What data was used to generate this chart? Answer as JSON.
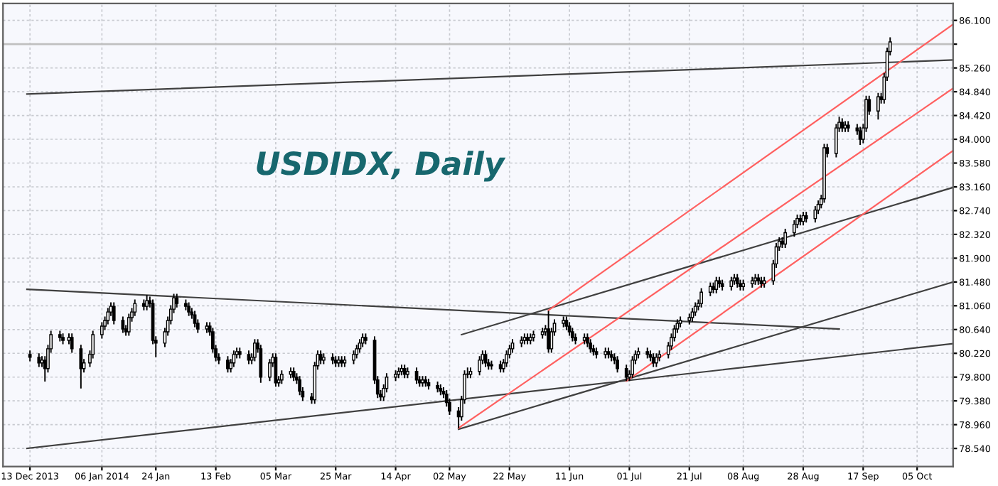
{
  "chart_data": {
    "type": "candlestick",
    "title": "USDIDX, Daily",
    "x": [
      "2013-12-13",
      "2013-12-16",
      "2013-12-17",
      "2013-12-18",
      "2013-12-19",
      "2013-12-20",
      "2013-12-23",
      "2013-12-24",
      "2013-12-26",
      "2013-12-27",
      "2013-12-30",
      "2013-12-31",
      "2014-01-02",
      "2014-01-03",
      "2014-01-06",
      "2014-01-07",
      "2014-01-08",
      "2014-01-09",
      "2014-01-10",
      "2014-01-13",
      "2014-01-14",
      "2014-01-15",
      "2014-01-16",
      "2014-01-17",
      "2014-01-20",
      "2014-01-21",
      "2014-01-22",
      "2014-01-23",
      "2014-01-24",
      "2014-01-27",
      "2014-01-28",
      "2014-01-29",
      "2014-01-30",
      "2014-01-31",
      "2014-02-03",
      "2014-02-04",
      "2014-02-05",
      "2014-02-06",
      "2014-02-07",
      "2014-02-10",
      "2014-02-11",
      "2014-02-12",
      "2014-02-13",
      "2014-02-14",
      "2014-02-17",
      "2014-02-18",
      "2014-02-19",
      "2014-02-20",
      "2014-02-21",
      "2014-02-24",
      "2014-02-25",
      "2014-02-26",
      "2014-02-27",
      "2014-02-28",
      "2014-03-03",
      "2014-03-04",
      "2014-03-05",
      "2014-03-06",
      "2014-03-07",
      "2014-03-10",
      "2014-03-11",
      "2014-03-12",
      "2014-03-13",
      "2014-03-14",
      "2014-03-17",
      "2014-03-18",
      "2014-03-19",
      "2014-03-20",
      "2014-03-21",
      "2014-03-24",
      "2014-03-25",
      "2014-03-26",
      "2014-03-27",
      "2014-03-28",
      "2014-03-31",
      "2014-04-01",
      "2014-04-02",
      "2014-04-03",
      "2014-04-04",
      "2014-04-07",
      "2014-04-08",
      "2014-04-09",
      "2014-04-10",
      "2014-04-11",
      "2014-04-14",
      "2014-04-15",
      "2014-04-16",
      "2014-04-17",
      "2014-04-18",
      "2014-04-21",
      "2014-04-22",
      "2014-04-23",
      "2014-04-24",
      "2014-04-25",
      "2014-04-28",
      "2014-04-29",
      "2014-04-30",
      "2014-05-01",
      "2014-05-02",
      "2014-05-05",
      "2014-05-06",
      "2014-05-07",
      "2014-05-08",
      "2014-05-09",
      "2014-05-12",
      "2014-05-13",
      "2014-05-14",
      "2014-05-15",
      "2014-05-16",
      "2014-05-19",
      "2014-05-20",
      "2014-05-21",
      "2014-05-22",
      "2014-05-23",
      "2014-05-26",
      "2014-05-27",
      "2014-05-28",
      "2014-05-29",
      "2014-05-30",
      "2014-06-02",
      "2014-06-03",
      "2014-06-04",
      "2014-06-05",
      "2014-06-06",
      "2014-06-09",
      "2014-06-10",
      "2014-06-11",
      "2014-06-12",
      "2014-06-13",
      "2014-06-16",
      "2014-06-17",
      "2014-06-18",
      "2014-06-19",
      "2014-06-20",
      "2014-06-23",
      "2014-06-24",
      "2014-06-25",
      "2014-06-26",
      "2014-06-27",
      "2014-06-30",
      "2014-07-01",
      "2014-07-02",
      "2014-07-03",
      "2014-07-04",
      "2014-07-07",
      "2014-07-08",
      "2014-07-09",
      "2014-07-10",
      "2014-07-11",
      "2014-07-14",
      "2014-07-15",
      "2014-07-16",
      "2014-07-17",
      "2014-07-18",
      "2014-07-21",
      "2014-07-22",
      "2014-07-23",
      "2014-07-24",
      "2014-07-25",
      "2014-07-28",
      "2014-07-29",
      "2014-07-30",
      "2014-07-31",
      "2014-08-01",
      "2014-08-04",
      "2014-08-05",
      "2014-08-06",
      "2014-08-07",
      "2014-08-08",
      "2014-08-11",
      "2014-08-12",
      "2014-08-13",
      "2014-08-14",
      "2014-08-15",
      "2014-08-18",
      "2014-08-19",
      "2014-08-20",
      "2014-08-21",
      "2014-08-22",
      "2014-08-25",
      "2014-08-26",
      "2014-08-27",
      "2014-08-28",
      "2014-08-29",
      "2014-09-01",
      "2014-09-02",
      "2014-09-03",
      "2014-09-04",
      "2014-09-05",
      "2014-09-08",
      "2014-09-09",
      "2014-09-10",
      "2014-09-11",
      "2014-09-12",
      "2014-09-15",
      "2014-09-16",
      "2014-09-17",
      "2014-09-18",
      "2014-09-19",
      "2014-09-22",
      "2014-09-23",
      "2014-09-24",
      "2014-09-25",
      "2014-09-26"
    ],
    "ohlc": [
      [
        80.2,
        80.27,
        80.08,
        80.15
      ],
      [
        80.15,
        80.22,
        79.98,
        80.05
      ],
      [
        80.05,
        80.17,
        79.98,
        80.1
      ],
      [
        80.1,
        80.17,
        79.72,
        79.95
      ],
      [
        79.95,
        80.37,
        79.88,
        80.3
      ],
      [
        80.3,
        80.62,
        80.23,
        80.55
      ],
      [
        80.55,
        80.62,
        80.43,
        80.5
      ],
      [
        80.5,
        80.57,
        80.38,
        80.45
      ],
      [
        80.45,
        80.57,
        80.38,
        80.5
      ],
      [
        80.5,
        80.57,
        80.23,
        80.3
      ],
      [
        80.3,
        80.37,
        79.6,
        79.95
      ],
      [
        79.95,
        80.12,
        79.88,
        80.05
      ],
      [
        80.05,
        80.27,
        79.98,
        80.2
      ],
      [
        80.2,
        80.62,
        80.13,
        80.55
      ],
      [
        80.55,
        80.77,
        80.48,
        80.7
      ],
      [
        80.7,
        80.87,
        80.63,
        80.8
      ],
      [
        80.8,
        81.02,
        80.73,
        80.95
      ],
      [
        80.95,
        81.12,
        80.88,
        81.05
      ],
      [
        81.05,
        81.12,
        80.73,
        80.8
      ],
      [
        80.8,
        80.87,
        80.58,
        80.65
      ],
      [
        80.65,
        80.72,
        80.53,
        80.6
      ],
      [
        80.6,
        80.92,
        80.53,
        80.85
      ],
      [
        80.85,
        81.02,
        80.78,
        80.95
      ],
      [
        80.95,
        81.17,
        80.88,
        81.1
      ],
      [
        81.1,
        81.17,
        80.98,
        81.05
      ],
      [
        81.05,
        81.25,
        80.98,
        81.15
      ],
      [
        81.15,
        81.22,
        81.03,
        81.1
      ],
      [
        81.1,
        81.17,
        80.38,
        80.45
      ],
      [
        80.45,
        80.52,
        80.15,
        80.4
      ],
      [
        80.4,
        80.67,
        80.33,
        80.6
      ],
      [
        80.6,
        80.87,
        80.53,
        80.8
      ],
      [
        80.8,
        81.07,
        80.73,
        81.0
      ],
      [
        81.0,
        81.27,
        80.93,
        81.2
      ],
      [
        81.2,
        81.27,
        81.03,
        81.1
      ],
      [
        81.1,
        81.17,
        80.98,
        81.05
      ],
      [
        81.05,
        81.12,
        80.88,
        80.95
      ],
      [
        80.95,
        81.02,
        80.83,
        80.9
      ],
      [
        80.9,
        80.97,
        80.68,
        80.75
      ],
      [
        80.75,
        80.82,
        80.58,
        80.65
      ],
      [
        80.65,
        80.77,
        80.58,
        80.7
      ],
      [
        80.7,
        80.77,
        80.53,
        80.6
      ],
      [
        80.6,
        80.67,
        80.23,
        80.3
      ],
      [
        80.3,
        80.37,
        80.08,
        80.15
      ],
      [
        80.15,
        80.22,
        80.03,
        80.1
      ],
      [
        80.1,
        80.17,
        79.88,
        79.95
      ],
      [
        79.95,
        80.12,
        79.88,
        80.05
      ],
      [
        80.05,
        80.27,
        79.98,
        80.2
      ],
      [
        80.2,
        80.32,
        80.13,
        80.25
      ],
      [
        80.25,
        80.32,
        80.13,
        80.2
      ],
      [
        80.2,
        80.27,
        80.03,
        80.1
      ],
      [
        80.1,
        80.22,
        80.03,
        80.15
      ],
      [
        80.15,
        80.47,
        80.08,
        80.4
      ],
      [
        80.4,
        80.47,
        80.23,
        80.3
      ],
      [
        80.3,
        80.37,
        79.7,
        79.8
      ],
      [
        79.8,
        80.12,
        79.73,
        80.05
      ],
      [
        80.05,
        80.22,
        79.98,
        80.15
      ],
      [
        80.15,
        80.22,
        79.63,
        79.7
      ],
      [
        79.7,
        79.82,
        79.63,
        79.75
      ],
      [
        79.75,
        79.92,
        79.68,
        79.85
      ],
      [
        79.85,
        79.97,
        79.78,
        79.9
      ],
      [
        79.9,
        79.97,
        79.73,
        79.8
      ],
      [
        79.8,
        79.87,
        79.68,
        79.75
      ],
      [
        79.75,
        79.82,
        79.48,
        79.55
      ],
      [
        79.55,
        79.62,
        79.38,
        79.45
      ],
      [
        79.45,
        79.52,
        79.33,
        79.4
      ],
      [
        79.4,
        80.07,
        79.33,
        80.0
      ],
      [
        80.0,
        80.27,
        79.93,
        80.2
      ],
      [
        80.2,
        80.27,
        80.03,
        80.1
      ],
      [
        80.1,
        80.22,
        80.03,
        80.15
      ],
      [
        80.15,
        80.22,
        80.03,
        80.1
      ],
      [
        80.1,
        80.17,
        79.98,
        80.05
      ],
      [
        80.05,
        80.17,
        79.98,
        80.1
      ],
      [
        80.1,
        80.17,
        79.98,
        80.05
      ],
      [
        80.05,
        80.17,
        79.98,
        80.1
      ],
      [
        80.1,
        80.27,
        80.03,
        80.2
      ],
      [
        80.2,
        80.37,
        80.13,
        80.3
      ],
      [
        80.3,
        80.47,
        80.23,
        80.4
      ],
      [
        80.4,
        80.57,
        80.33,
        80.5
      ],
      [
        80.5,
        80.57,
        80.38,
        80.45
      ],
      [
        80.45,
        80.52,
        79.68,
        79.75
      ],
      [
        79.75,
        79.82,
        79.43,
        79.5
      ],
      [
        79.5,
        79.57,
        79.38,
        79.45
      ],
      [
        79.45,
        79.67,
        79.38,
        79.6
      ],
      [
        79.6,
        79.87,
        79.53,
        79.8
      ],
      [
        79.8,
        79.92,
        79.73,
        79.85
      ],
      [
        79.85,
        79.97,
        79.78,
        79.9
      ],
      [
        79.9,
        80.02,
        79.83,
        79.95
      ],
      [
        79.95,
        80.02,
        79.78,
        79.85
      ],
      [
        79.85,
        79.97,
        79.78,
        79.9
      ],
      [
        79.9,
        79.97,
        79.68,
        79.75
      ],
      [
        79.75,
        79.82,
        79.63,
        79.7
      ],
      [
        79.7,
        79.82,
        79.63,
        79.75
      ],
      [
        79.75,
        79.82,
        79.63,
        79.7
      ],
      [
        79.7,
        79.77,
        79.58,
        79.65
      ],
      [
        79.65,
        79.72,
        79.53,
        79.6
      ],
      [
        79.6,
        79.67,
        79.48,
        79.55
      ],
      [
        79.55,
        79.62,
        79.43,
        79.5
      ],
      [
        79.5,
        79.57,
        79.28,
        79.35
      ],
      [
        79.35,
        79.42,
        79.13,
        79.2
      ],
      [
        79.2,
        79.27,
        78.9,
        79.1
      ],
      [
        79.1,
        79.47,
        79.03,
        79.4
      ],
      [
        79.4,
        79.92,
        79.33,
        79.85
      ],
      [
        79.85,
        79.97,
        79.78,
        79.85
      ],
      [
        79.85,
        79.97,
        79.78,
        79.9
      ],
      [
        79.9,
        80.17,
        79.83,
        80.1
      ],
      [
        80.1,
        80.27,
        80.03,
        80.2
      ],
      [
        80.2,
        80.27,
        79.98,
        80.05
      ],
      [
        80.05,
        80.12,
        79.93,
        80.0
      ],
      [
        80.0,
        80.09,
        79.93,
        80.02
      ],
      [
        80.02,
        80.09,
        79.88,
        79.95
      ],
      [
        79.95,
        80.12,
        79.88,
        80.05
      ],
      [
        80.05,
        80.27,
        79.98,
        80.2
      ],
      [
        80.2,
        80.37,
        80.13,
        80.3
      ],
      [
        80.3,
        80.47,
        80.23,
        80.4
      ],
      [
        80.4,
        80.52,
        80.33,
        80.45
      ],
      [
        80.45,
        80.57,
        80.38,
        80.5
      ],
      [
        80.5,
        80.57,
        80.38,
        80.45
      ],
      [
        80.45,
        80.57,
        80.38,
        80.5
      ],
      [
        80.5,
        80.62,
        80.43,
        80.55
      ],
      [
        80.55,
        80.67,
        80.48,
        80.6
      ],
      [
        80.6,
        80.72,
        80.53,
        80.65
      ],
      [
        80.65,
        80.97,
        80.23,
        80.3
      ],
      [
        80.3,
        80.67,
        80.23,
        80.6
      ],
      [
        80.6,
        80.82,
        80.53,
        80.75
      ],
      [
        80.75,
        80.87,
        80.68,
        80.8
      ],
      [
        80.8,
        80.87,
        80.63,
        80.7
      ],
      [
        80.7,
        80.77,
        80.53,
        80.6
      ],
      [
        80.6,
        80.67,
        80.43,
        80.5
      ],
      [
        80.5,
        80.57,
        80.38,
        80.45
      ],
      [
        80.45,
        80.57,
        80.38,
        80.5
      ],
      [
        80.5,
        80.57,
        80.33,
        80.4
      ],
      [
        80.4,
        80.47,
        80.23,
        80.3
      ],
      [
        80.3,
        80.37,
        80.18,
        80.25
      ],
      [
        80.25,
        80.32,
        80.13,
        80.2
      ],
      [
        80.2,
        80.32,
        80.13,
        80.25
      ],
      [
        80.25,
        80.32,
        80.13,
        80.2
      ],
      [
        80.2,
        80.27,
        80.08,
        80.15
      ],
      [
        80.15,
        80.22,
        80.03,
        80.1
      ],
      [
        80.1,
        80.17,
        79.88,
        79.95
      ],
      [
        79.95,
        80.02,
        79.73,
        79.8
      ],
      [
        79.8,
        79.92,
        79.73,
        79.85
      ],
      [
        79.85,
        80.17,
        79.78,
        80.1
      ],
      [
        80.1,
        80.27,
        80.03,
        80.2
      ],
      [
        80.2,
        80.32,
        80.13,
        80.25
      ],
      [
        80.25,
        80.32,
        80.13,
        80.2
      ],
      [
        80.2,
        80.27,
        80.08,
        80.15
      ],
      [
        80.15,
        80.22,
        79.98,
        80.05
      ],
      [
        80.05,
        80.22,
        79.98,
        80.15
      ],
      [
        80.15,
        80.27,
        80.08,
        80.2
      ],
      [
        80.2,
        80.42,
        80.13,
        80.35
      ],
      [
        80.35,
        80.57,
        80.28,
        80.5
      ],
      [
        80.5,
        80.72,
        80.43,
        80.65
      ],
      [
        80.65,
        80.82,
        80.58,
        80.75
      ],
      [
        80.75,
        80.87,
        80.68,
        80.8
      ],
      [
        80.8,
        80.92,
        80.73,
        80.85
      ],
      [
        80.85,
        81.02,
        80.78,
        80.95
      ],
      [
        80.95,
        81.12,
        80.88,
        81.05
      ],
      [
        81.05,
        81.17,
        80.98,
        81.1
      ],
      [
        81.1,
        81.37,
        81.03,
        81.3
      ],
      [
        81.3,
        81.47,
        81.23,
        81.4
      ],
      [
        81.4,
        81.47,
        81.28,
        81.35
      ],
      [
        81.35,
        81.57,
        81.28,
        81.5
      ],
      [
        81.5,
        81.57,
        81.38,
        81.45
      ],
      [
        81.45,
        81.52,
        81.33,
        81.4
      ],
      [
        81.4,
        81.57,
        81.33,
        81.5
      ],
      [
        81.5,
        81.62,
        81.43,
        81.55
      ],
      [
        81.55,
        81.62,
        81.38,
        81.45
      ],
      [
        81.45,
        81.52,
        81.33,
        81.4
      ],
      [
        81.4,
        81.52,
        81.33,
        81.45
      ],
      [
        81.45,
        81.57,
        81.38,
        81.5
      ],
      [
        81.5,
        81.62,
        81.43,
        81.55
      ],
      [
        81.55,
        81.62,
        81.43,
        81.5
      ],
      [
        81.5,
        81.57,
        81.38,
        81.45
      ],
      [
        81.45,
        81.57,
        81.38,
        81.5
      ],
      [
        81.5,
        81.87,
        81.43,
        81.8
      ],
      [
        81.8,
        82.17,
        81.73,
        82.1
      ],
      [
        82.1,
        82.27,
        82.03,
        82.2
      ],
      [
        82.2,
        82.27,
        82.08,
        82.15
      ],
      [
        82.15,
        82.42,
        82.08,
        82.35
      ],
      [
        82.35,
        82.57,
        82.28,
        82.5
      ],
      [
        82.5,
        82.67,
        82.43,
        82.6
      ],
      [
        82.6,
        82.67,
        82.48,
        82.55
      ],
      [
        82.55,
        82.72,
        82.48,
        82.65
      ],
      [
        82.65,
        82.72,
        82.53,
        82.6
      ],
      [
        82.6,
        82.82,
        82.53,
        82.75
      ],
      [
        82.75,
        82.92,
        82.68,
        82.85
      ],
      [
        82.85,
        83.02,
        82.78,
        82.95
      ],
      [
        82.95,
        83.92,
        82.88,
        83.85
      ],
      [
        83.85,
        83.92,
        83.68,
        83.75
      ],
      [
        83.75,
        84.27,
        83.68,
        84.2
      ],
      [
        84.2,
        84.4,
        84.13,
        84.3
      ],
      [
        84.3,
        84.37,
        84.13,
        84.2
      ],
      [
        84.2,
        84.32,
        84.13,
        84.25
      ],
      [
        84.25,
        84.32,
        84.13,
        84.2
      ],
      [
        84.2,
        84.27,
        84.08,
        84.15
      ],
      [
        84.15,
        84.22,
        83.9,
        84.0
      ],
      [
        84.0,
        84.27,
        83.93,
        84.2
      ],
      [
        84.2,
        84.77,
        84.13,
        84.7
      ],
      [
        84.7,
        84.77,
        84.43,
        84.5
      ],
      [
        84.5,
        84.82,
        84.35,
        84.75
      ],
      [
        84.75,
        84.82,
        84.63,
        84.7
      ],
      [
        84.7,
        85.17,
        84.63,
        85.1
      ],
      [
        85.1,
        85.62,
        85.03,
        85.55
      ],
      [
        85.55,
        85.8,
        85.48,
        85.72
      ]
    ],
    "series": [
      {
        "type": "line",
        "color": "#404040",
        "x": [
          "2013-12-12",
          "2014-10-17"
        ],
        "values": [
          84.8,
          85.4
        ]
      },
      {
        "type": "line",
        "color": "#404040",
        "x": [
          "2013-12-12",
          "2014-09-09"
        ],
        "values": [
          81.35,
          80.65
        ]
      },
      {
        "type": "line",
        "color": "#404040",
        "x": [
          "2013-12-12",
          "2014-10-17"
        ],
        "values": [
          78.54,
          80.39
        ]
      },
      {
        "type": "line",
        "color": "#404040",
        "x": [
          "2014-05-05",
          "2014-10-17"
        ],
        "values": [
          78.88,
          81.48
        ]
      },
      {
        "type": "line",
        "color": "#404040",
        "x": [
          "2014-05-06",
          "2014-10-17"
        ],
        "values": [
          80.55,
          83.15
        ]
      },
      {
        "type": "line",
        "color": "#ff6060",
        "x": [
          "2014-06-04",
          "2014-10-17"
        ],
        "values": [
          80.98,
          86.03
        ]
      },
      {
        "type": "line",
        "color": "#ff6060",
        "x": [
          "2014-05-05",
          "2014-10-17"
        ],
        "values": [
          78.9,
          84.9
        ]
      },
      {
        "type": "line",
        "color": "#ff6060",
        "x": [
          "2014-06-30",
          "2014-10-17"
        ],
        "values": [
          79.73,
          83.8
        ]
      }
    ],
    "ref_lines": [
      {
        "axis": "y",
        "value": 85.68,
        "color": "#c0c0c0"
      }
    ],
    "xlim": [
      "2013-12-04",
      "2014-10-17"
    ],
    "ylim": [
      78.22,
      86.4
    ],
    "xticks": [
      {
        "value": "2013-12-13",
        "label": "13 Dec 2013"
      },
      {
        "value": "2014-01-06",
        "label": "06 Jan 2014"
      },
      {
        "value": "2014-01-24",
        "label": "24 Jan"
      },
      {
        "value": "2014-02-13",
        "label": "13 Feb"
      },
      {
        "value": "2014-03-05",
        "label": "05 Mar"
      },
      {
        "value": "2014-03-25",
        "label": "25 Mar"
      },
      {
        "value": "2014-04-14",
        "label": "14 Apr"
      },
      {
        "value": "2014-05-02",
        "label": "02 May"
      },
      {
        "value": "2014-05-22",
        "label": "22 May"
      },
      {
        "value": "2014-06-11",
        "label": "11 Jun"
      },
      {
        "value": "2014-07-01",
        "label": "01 Jul"
      },
      {
        "value": "2014-07-21",
        "label": "21 Jul"
      },
      {
        "value": "2014-08-08",
        "label": "08 Aug"
      },
      {
        "value": "2014-08-28",
        "label": "28 Aug"
      },
      {
        "value": "2014-09-17",
        "label": "17 Sep"
      },
      {
        "value": "2014-10-05",
        "label": "05 Oct"
      }
    ],
    "yticks": [
      {
        "value": 78.54,
        "label": "78.540"
      },
      {
        "value": 78.96,
        "label": "78.960"
      },
      {
        "value": 79.38,
        "label": "79.380"
      },
      {
        "value": 79.8,
        "label": "79.800"
      },
      {
        "value": 80.22,
        "label": "80.220"
      },
      {
        "value": 80.64,
        "label": "80.640"
      },
      {
        "value": 81.06,
        "label": "81.060"
      },
      {
        "value": 81.48,
        "label": "81.480"
      },
      {
        "value": 81.9,
        "label": "81.900"
      },
      {
        "value": 82.32,
        "label": "82.320"
      },
      {
        "value": 82.74,
        "label": "82.740"
      },
      {
        "value": 83.16,
        "label": "83.160"
      },
      {
        "value": 83.58,
        "label": "83.580"
      },
      {
        "value": 84.0,
        "label": "84.000"
      },
      {
        "value": 84.42,
        "label": "84.420"
      },
      {
        "value": 84.84,
        "label": "84.840"
      },
      {
        "value": 85.26,
        "label": "85.260"
      },
      {
        "value": 85.68,
        "label": null
      },
      {
        "value": 86.1,
        "label": "86.100"
      }
    ],
    "grid": true
  }
}
